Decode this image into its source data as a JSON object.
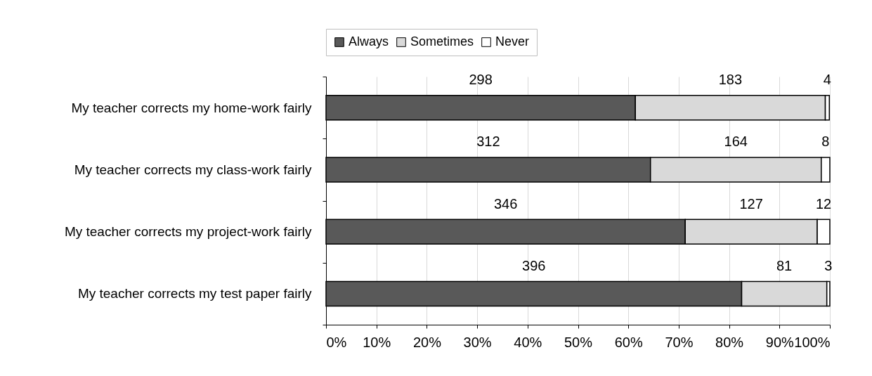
{
  "chart_data": {
    "type": "bar",
    "orientation": "horizontal",
    "stacked": true,
    "categories": [
      "My teacher corrects my home-work fairly",
      "My teacher corrects my class-work fairly",
      "My teacher corrects my project-work fairly",
      "My teacher corrects my test paper fairly"
    ],
    "series": [
      {
        "name": "Always",
        "color": "#595959",
        "values": [
          61.4,
          64.4,
          71.3,
          82.5
        ]
      },
      {
        "name": "Sometimes",
        "color": "#d9d9d9",
        "values": [
          37.7,
          33.9,
          26.2,
          16.9
        ]
      },
      {
        "name": "Never",
        "color": "#ffffff",
        "values": [
          0.8,
          1.7,
          2.5,
          0.6
        ]
      }
    ],
    "annotations": [
      "298",
      "183",
      "4",
      "312",
      "164",
      "8",
      "346",
      "127",
      "12",
      "396",
      "81",
      "3"
    ],
    "xlim": [
      0,
      100
    ],
    "xticks": [
      {
        "value": 0,
        "label": "0%"
      },
      {
        "value": 10,
        "label": "10%"
      },
      {
        "value": 20,
        "label": "20%"
      },
      {
        "value": 30,
        "label": "30%"
      },
      {
        "value": 40,
        "label": "40%"
      },
      {
        "value": 50,
        "label": "50%"
      },
      {
        "value": 60,
        "label": "60%"
      },
      {
        "value": 70,
        "label": "70%"
      },
      {
        "value": 80,
        "label": "80%"
      },
      {
        "value": 90,
        "label": "90%"
      },
      {
        "value": 100,
        "label": "100%"
      }
    ],
    "grid": "x",
    "legend": "top"
  }
}
